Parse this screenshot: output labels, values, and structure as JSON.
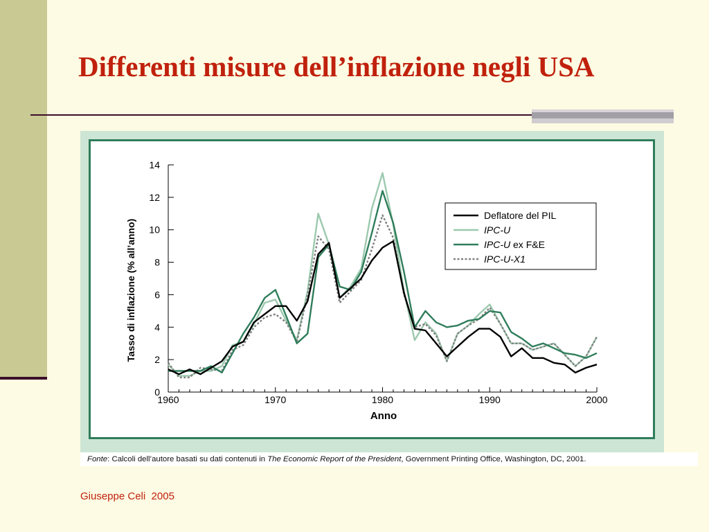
{
  "slide": {
    "title": "Differenti misure dell’inflazione negli USA",
    "footer": "Giuseppe Celi  2005"
  },
  "caption": {
    "label": "Fonte",
    "text_before": ": Calcoli dell’autore basati su dati contenuti in ",
    "title_italic": "The Economic Report of the President",
    "text_after": ", Government Printing Office, Washington, DC, 2001."
  },
  "chart_data": {
    "type": "line",
    "xlabel": "Anno",
    "ylabel": "Tasso di inflazione (% all’anno)",
    "xlim": [
      1960,
      2000
    ],
    "ylim": [
      0,
      14
    ],
    "xticks": [
      1960,
      1970,
      1980,
      1990,
      2000
    ],
    "yticks": [
      0,
      2,
      4,
      6,
      8,
      10,
      12,
      14
    ],
    "grid": false,
    "legend_position": "top-right",
    "x": [
      1960,
      1961,
      1962,
      1963,
      1964,
      1965,
      1966,
      1967,
      1968,
      1969,
      1970,
      1971,
      1972,
      1973,
      1974,
      1975,
      1976,
      1977,
      1978,
      1979,
      1980,
      1981,
      1982,
      1983,
      1984,
      1985,
      1986,
      1987,
      1988,
      1989,
      1990,
      1991,
      1992,
      1993,
      1994,
      1995,
      1996,
      1997,
      1998,
      1999,
      2000
    ],
    "series": [
      {
        "name": "Deflatore del PIL",
        "color": "#000000",
        "style": "solid",
        "values": [
          1.4,
          1.1,
          1.4,
          1.1,
          1.5,
          1.9,
          2.8,
          3.1,
          4.3,
          4.8,
          5.3,
          5.3,
          4.4,
          5.6,
          8.5,
          9.2,
          5.8,
          6.4,
          7.0,
          8.1,
          8.9,
          9.3,
          6.1,
          3.9,
          3.8,
          3.0,
          2.2,
          2.8,
          3.4,
          3.9,
          3.9,
          3.4,
          2.2,
          2.7,
          2.1,
          2.1,
          1.8,
          1.7,
          1.2,
          1.5,
          1.7
        ]
      },
      {
        "name": "IPC-U",
        "name_prefix": "IPC-U",
        "name_suffix": "",
        "color": "#9cc9ae",
        "style": "solid",
        "values": [
          1.7,
          1.0,
          1.0,
          1.3,
          1.3,
          1.6,
          2.9,
          3.1,
          4.2,
          5.5,
          5.7,
          4.4,
          3.2,
          6.2,
          11.0,
          9.1,
          5.8,
          6.5,
          7.6,
          11.3,
          13.5,
          10.3,
          6.2,
          3.2,
          4.3,
          3.6,
          1.9,
          3.6,
          4.1,
          4.8,
          5.4,
          4.2,
          3.0,
          3.0,
          2.6,
          2.8,
          3.0,
          2.3,
          1.6,
          2.2,
          3.4
        ]
      },
      {
        "name": "IPC-U ex F&E",
        "name_prefix": "IPC-U",
        "name_suffix": " ex F&E",
        "color": "#2f7d5b",
        "style": "solid",
        "values": [
          1.3,
          1.3,
          1.3,
          1.3,
          1.6,
          1.2,
          2.4,
          3.6,
          4.6,
          5.8,
          6.3,
          4.7,
          3.0,
          3.6,
          8.3,
          9.1,
          6.5,
          6.3,
          7.4,
          9.8,
          12.4,
          10.4,
          7.4,
          4.0,
          5.0,
          4.3,
          4.0,
          4.1,
          4.4,
          4.5,
          5.0,
          4.9,
          3.7,
          3.3,
          2.8,
          3.0,
          2.7,
          2.4,
          2.3,
          2.1,
          2.4
        ]
      },
      {
        "name": "IPC-U-X1",
        "name_prefix": "IPC-U-X1",
        "name_suffix": "",
        "color": "#808080",
        "style": "dashed",
        "values": [
          1.8,
          0.9,
          0.9,
          1.5,
          1.4,
          1.3,
          2.6,
          2.9,
          4.0,
          4.6,
          4.8,
          4.3,
          3.1,
          6.0,
          9.6,
          8.8,
          5.5,
          6.2,
          6.9,
          8.8,
          10.9,
          9.5,
          6.0,
          4.0,
          4.2,
          3.5,
          1.9,
          3.6,
          4.1,
          4.5,
          5.2,
          4.2,
          3.0,
          3.0,
          2.6,
          2.8,
          3.0,
          2.3,
          1.6,
          2.2,
          3.4
        ]
      }
    ]
  }
}
